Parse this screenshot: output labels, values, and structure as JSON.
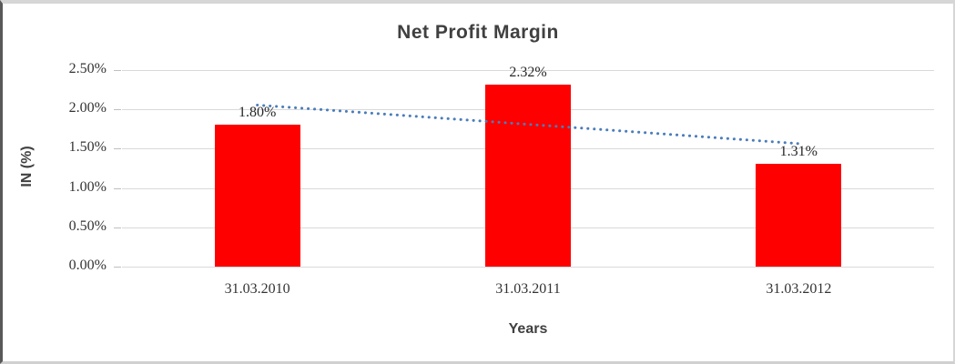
{
  "chart_data": {
    "type": "bar",
    "title": "Net Profit Margin",
    "xlabel": "Years",
    "ylabel": "IN (%)",
    "categories": [
      "31.03.2010",
      "31.03.2011",
      "31.03.2012"
    ],
    "values": [
      1.8,
      2.32,
      1.31
    ],
    "data_labels": [
      "1.80%",
      "2.32%",
      "1.31%"
    ],
    "y_ticks": [
      "2.50%",
      "2.00%",
      "1.50%",
      "1.00%",
      "0.50%",
      "0.00%"
    ],
    "ylim": [
      0,
      2.5
    ],
    "grid": true,
    "legend": "none",
    "bar_color": "#ff0000",
    "text_color": "#404040",
    "gridline_color": "#d9d9d9",
    "trendline": {
      "fit": "linear",
      "style": "dotted",
      "color": "#4a7dba"
    }
  }
}
